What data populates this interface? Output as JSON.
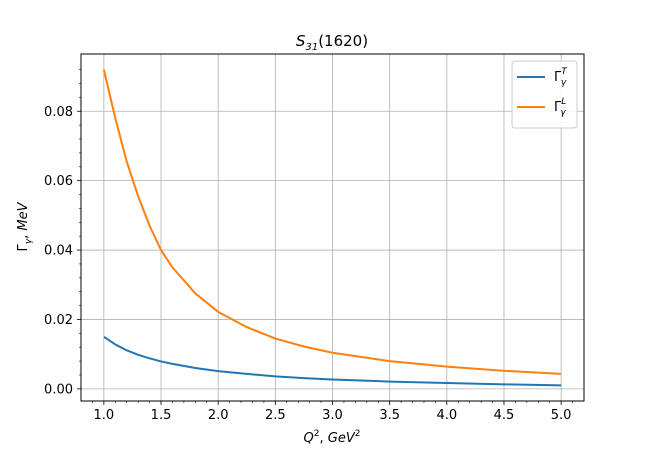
{
  "chart_data": {
    "type": "line",
    "title": {
      "main": "S",
      "sub": "31",
      "rest": "(1620)"
    },
    "xlabel": {
      "main": "Q",
      "sup": "2",
      "sep": ", ",
      "unit": "GeV",
      "unit_sup": "2"
    },
    "ylabel": {
      "sym": "Γ",
      "sub": "γ",
      "sep": ", ",
      "unit": "MeV"
    },
    "xlim": [
      0.8,
      5.2
    ],
    "ylim": [
      -0.0035,
      0.0965
    ],
    "xticks": [
      1.0,
      1.5,
      2.0,
      2.5,
      3.0,
      3.5,
      4.0,
      4.5,
      5.0
    ],
    "xtick_labels": [
      "1.0",
      "1.5",
      "2.0",
      "2.5",
      "3.0",
      "3.5",
      "4.0",
      "4.5",
      "5.0"
    ],
    "yticks": [
      0.0,
      0.02,
      0.04,
      0.06,
      0.08
    ],
    "ytick_labels": [
      "0.00",
      "0.02",
      "0.04",
      "0.06",
      "0.08"
    ],
    "grid": true,
    "legend_position": "top-right",
    "x": [
      1.0,
      1.1,
      1.2,
      1.3,
      1.4,
      1.5,
      1.6,
      1.8,
      2.0,
      2.25,
      2.5,
      2.75,
      3.0,
      3.5,
      4.0,
      4.5,
      5.0
    ],
    "series": [
      {
        "name": {
          "sym": "Γ",
          "sup": "T",
          "sub": "γ"
        },
        "color": "#1f77b4",
        "values": [
          0.015,
          0.0128,
          0.0111,
          0.0098,
          0.0088,
          0.0079,
          0.0072,
          0.006,
          0.0051,
          0.0043,
          0.0036,
          0.0031,
          0.0027,
          0.0021,
          0.0017,
          0.0013,
          0.001
        ]
      },
      {
        "name": {
          "sym": "Γ",
          "sup": "L",
          "sub": "γ"
        },
        "color": "#ff7f0e",
        "values": [
          0.092,
          0.078,
          0.0655,
          0.0555,
          0.047,
          0.04,
          0.035,
          0.0275,
          0.0222,
          0.0178,
          0.0145,
          0.0122,
          0.0104,
          0.008,
          0.0064,
          0.0052,
          0.0043
        ]
      }
    ]
  }
}
